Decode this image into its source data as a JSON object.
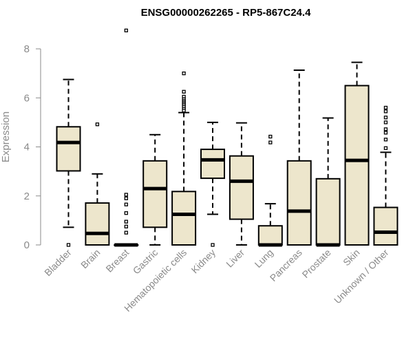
{
  "chart_data": {
    "type": "boxplot",
    "title": "ENSG00000262265 - RP5-867C24.4",
    "ylabel": "Expression",
    "xlabel": "",
    "ylim": [
      0,
      8
    ],
    "yticks": [
      0,
      2,
      4,
      6,
      8
    ],
    "box_fill": "#ede6cc",
    "categories": [
      "Bladder",
      "Brain",
      "Breast",
      "Gastric",
      "Hematopoietic cells",
      "Kidney",
      "Liver",
      "Lung",
      "Pancreas",
      "Prostate",
      "Skin",
      "Unknown / Other"
    ],
    "boxes": [
      {
        "min": 0.72,
        "q1": 3.02,
        "median": 4.18,
        "q3": 4.82,
        "max": 6.75,
        "outliers": [
          0.0
        ]
      },
      {
        "min": 0.0,
        "q1": 0.0,
        "median": 0.47,
        "q3": 1.71,
        "max": 2.9,
        "outliers": [
          4.92
        ]
      },
      {
        "min": 0.0,
        "q1": 0.0,
        "median": 0.0,
        "q3": 0.0,
        "max": 0.0,
        "outliers": [
          8.75,
          2.05,
          1.9,
          1.65,
          1.3,
          0.95,
          0.75,
          0.5
        ]
      },
      {
        "min": 0.0,
        "q1": 0.72,
        "median": 2.3,
        "q3": 3.43,
        "max": 4.5,
        "outliers": []
      },
      {
        "min": 0.0,
        "q1": 0.0,
        "median": 1.25,
        "q3": 2.18,
        "max": 5.4,
        "outliers": [
          7.0,
          6.25,
          6.05,
          5.95,
          5.88,
          5.82,
          5.76,
          5.7,
          5.63,
          5.55,
          5.48
        ]
      },
      {
        "min": 1.25,
        "q1": 2.72,
        "median": 3.47,
        "q3": 3.9,
        "max": 5.0,
        "outliers": [
          0.0
        ]
      },
      {
        "min": 0.0,
        "q1": 1.05,
        "median": 2.6,
        "q3": 3.63,
        "max": 4.98,
        "outliers": []
      },
      {
        "min": 0.0,
        "q1": 0.0,
        "median": 0.0,
        "q3": 0.78,
        "max": 1.68,
        "outliers": [
          4.42,
          4.18
        ]
      },
      {
        "min": 0.0,
        "q1": 0.0,
        "median": 1.38,
        "q3": 3.43,
        "max": 7.13,
        "outliers": []
      },
      {
        "min": 0.0,
        "q1": 0.0,
        "median": 0.0,
        "q3": 2.7,
        "max": 5.18,
        "outliers": []
      },
      {
        "min": 0.0,
        "q1": 0.0,
        "median": 3.45,
        "q3": 6.5,
        "max": 7.45,
        "outliers": []
      },
      {
        "min": 0.0,
        "q1": 0.0,
        "median": 0.52,
        "q3": 1.53,
        "max": 3.78,
        "outliers": [
          5.6,
          5.45,
          5.2,
          5.0,
          4.72,
          4.58,
          4.3,
          3.95
        ]
      }
    ]
  }
}
